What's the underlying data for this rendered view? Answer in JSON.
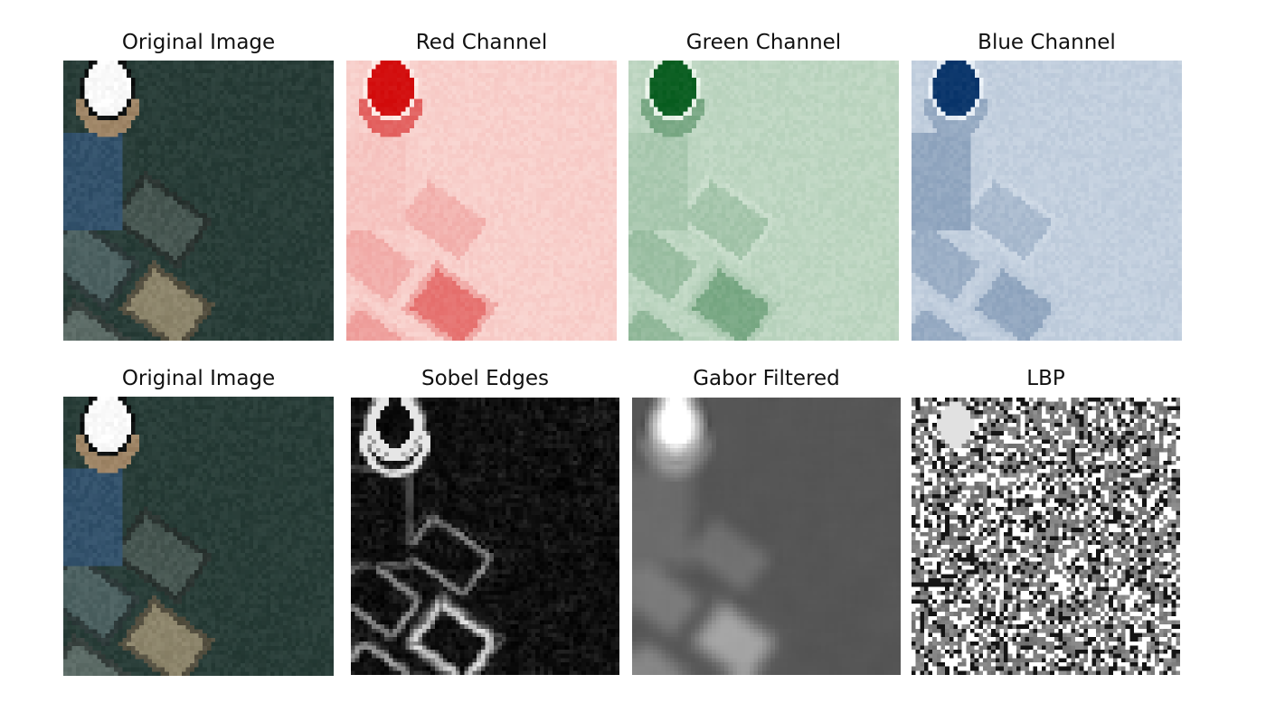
{
  "panels": [
    {
      "id": "original-top",
      "title": "Original Image",
      "kind": "rgb"
    },
    {
      "id": "red-channel",
      "title": "Red Channel",
      "kind": "red"
    },
    {
      "id": "green-channel",
      "title": "Green Channel",
      "kind": "green"
    },
    {
      "id": "blue-channel",
      "title": "Blue Channel",
      "kind": "blue"
    },
    {
      "id": "original-bottom",
      "title": "Original Image",
      "kind": "rgb"
    },
    {
      "id": "sobel-edges",
      "title": "Sobel Edges",
      "kind": "sobel"
    },
    {
      "id": "gabor-filtered",
      "title": "Gabor Filtered",
      "kind": "gabor"
    },
    {
      "id": "lbp",
      "title": "LBP",
      "kind": "lbp"
    }
  ]
}
